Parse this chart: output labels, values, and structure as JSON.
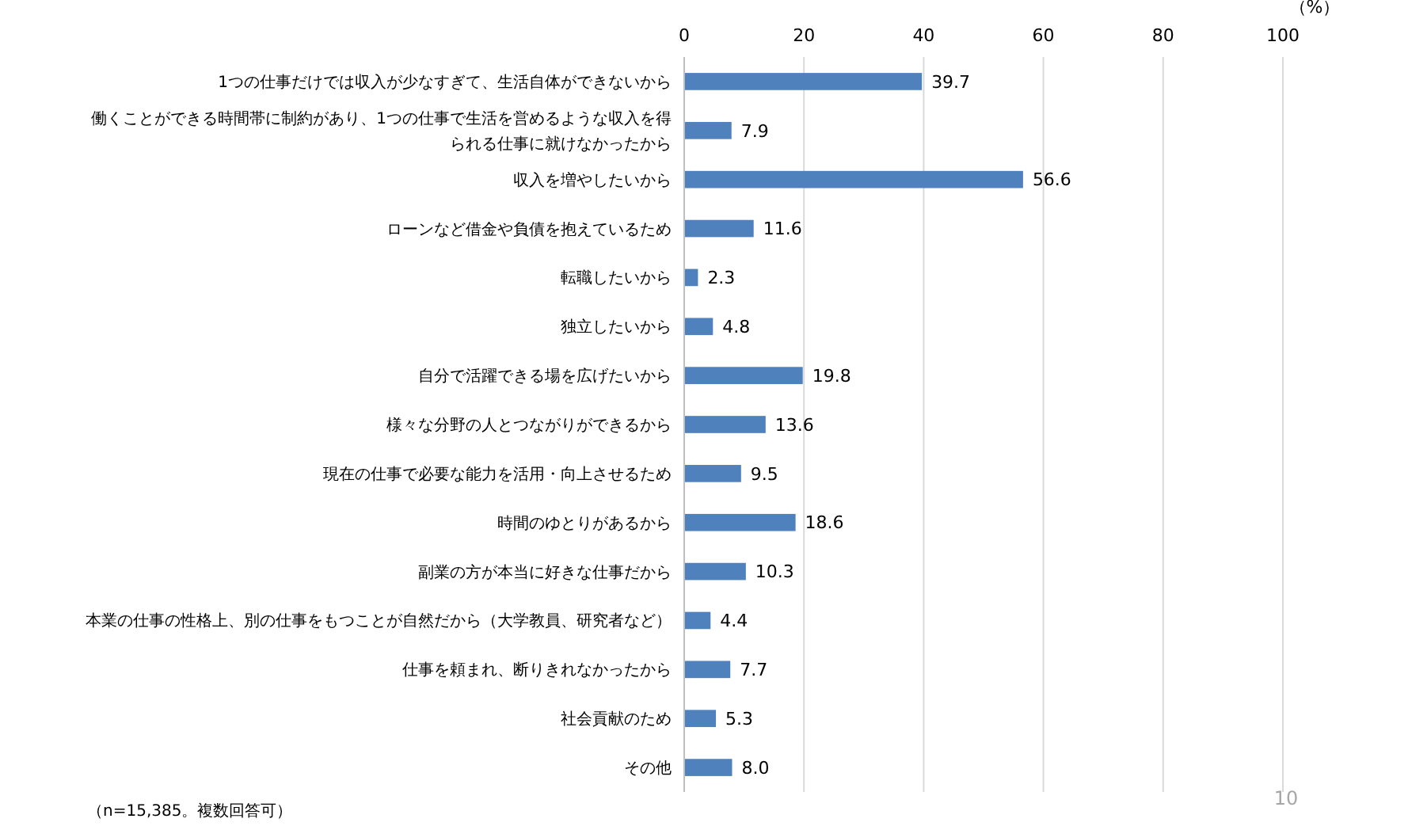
{
  "chart_data": {
    "type": "bar",
    "orientation": "horizontal",
    "categories": [
      "1つの仕事だけでは収入が少なすぎて、生活自体ができないから",
      "働くことができる時間帯に制約があり、1つの仕事で生活を営めるような収入を得られる仕事に就けなかったから",
      "収入を増やしたいから",
      "ローンなど借金や負債を抱えているため",
      "転職したいから",
      "独立したいから",
      "自分で活躍できる場を広げたいから",
      "様々な分野の人とつながりができるから",
      "現在の仕事で必要な能力を活用・向上させるため",
      "時間のゆとりがあるから",
      "副業の方が本当に好きな仕事だから",
      "本業の仕事の性格上、別の仕事をもつことが自然だから（大学教員、研究者など）",
      "仕事を頼まれ、断りきれなかったから",
      "社会貢献のため",
      "その他"
    ],
    "values": [
      39.7,
      7.9,
      56.6,
      11.6,
      2.3,
      4.8,
      19.8,
      13.6,
      9.5,
      18.6,
      10.3,
      4.4,
      7.7,
      5.3,
      8.0
    ],
    "value_labels": [
      "39.7",
      "7.9",
      "56.6",
      "11.6",
      "2.3",
      "4.8",
      "19.8",
      "13.6",
      "9.5",
      "18.6",
      "10.3",
      "4.4",
      "7.7",
      "5.3",
      "8.0"
    ],
    "color": "#4f81bd",
    "xlim": [
      0,
      100
    ],
    "xticks": [
      0,
      20,
      40,
      60,
      80,
      100
    ],
    "grid": "x",
    "xlabel": "（%）",
    "annotations": [
      "（n=15,385。複数回答可）",
      "10"
    ]
  }
}
